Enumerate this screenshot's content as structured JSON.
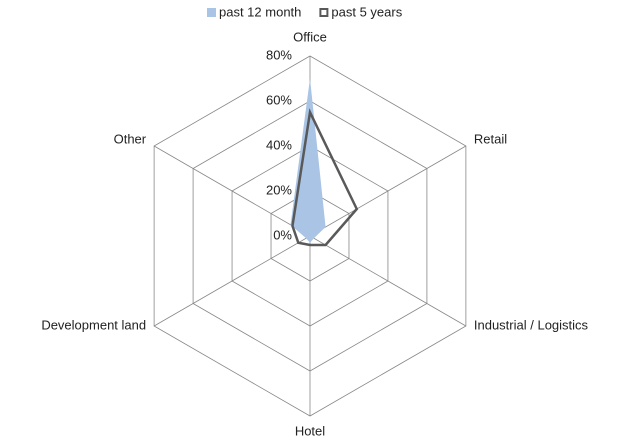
{
  "chart_data": {
    "type": "radar",
    "categories": [
      "Office",
      "Retail",
      "Industrial / Logistics",
      "Hotel",
      "Development land",
      "Other"
    ],
    "series": [
      {
        "name": "past 12 month",
        "color": "#a9c4e4",
        "values": [
          70,
          8,
          2,
          3,
          2,
          10
        ]
      },
      {
        "name": "past 5 years",
        "color": "#595959",
        "values": [
          55,
          24,
          8,
          4,
          6,
          9
        ]
      }
    ],
    "ylim": [
      0,
      80
    ],
    "yticks": [
      {
        "value": 0,
        "label": "0%"
      },
      {
        "value": 20,
        "label": "20%"
      },
      {
        "value": 40,
        "label": "40%"
      },
      {
        "value": 60,
        "label": "60%"
      },
      {
        "value": 80,
        "label": "80%"
      }
    ],
    "grid": true,
    "legend": "top"
  }
}
